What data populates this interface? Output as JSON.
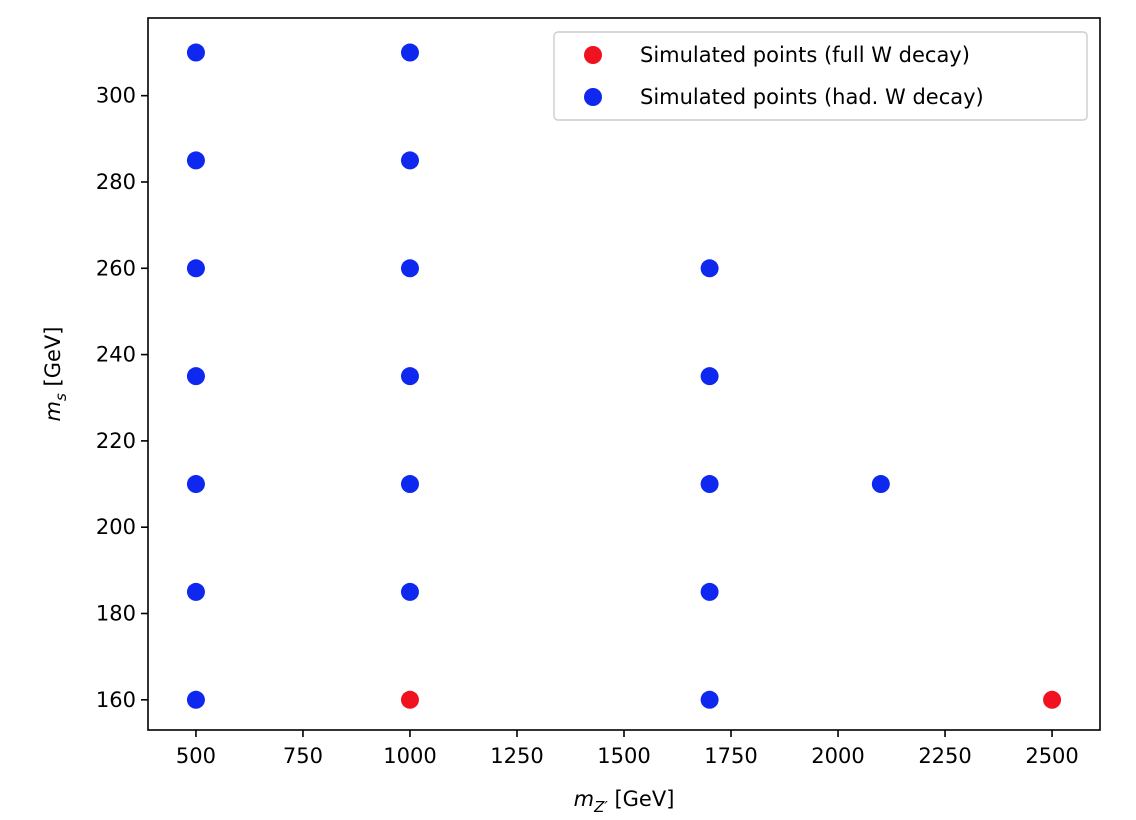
{
  "chart_data": {
    "type": "scatter",
    "xlabel": {
      "var": "m",
      "sub": "Z′",
      "unit": "[GeV]"
    },
    "ylabel": {
      "var": "m",
      "sub": "s",
      "unit": "[GeV]"
    },
    "xlim": [
      388,
      2612
    ],
    "ylim": [
      153,
      318
    ],
    "xticks": [
      500,
      750,
      1000,
      1250,
      1500,
      1750,
      2000,
      2250,
      2500
    ],
    "yticks": [
      160,
      180,
      200,
      220,
      240,
      260,
      280,
      300
    ],
    "grid": false,
    "legend_position": "top-right",
    "series": [
      {
        "name": "Simulated points (full W decay)",
        "color": "#f0121f",
        "points": [
          [
            1000,
            160
          ],
          [
            2500,
            160
          ]
        ]
      },
      {
        "name": "Simulated points (had. W decay)",
        "color": "#0f28f0",
        "points": [
          [
            500,
            160
          ],
          [
            500,
            185
          ],
          [
            500,
            210
          ],
          [
            500,
            235
          ],
          [
            500,
            260
          ],
          [
            500,
            285
          ],
          [
            500,
            310
          ],
          [
            1000,
            185
          ],
          [
            1000,
            210
          ],
          [
            1000,
            235
          ],
          [
            1000,
            260
          ],
          [
            1000,
            285
          ],
          [
            1000,
            310
          ],
          [
            1700,
            160
          ],
          [
            1700,
            185
          ],
          [
            1700,
            210
          ],
          [
            1700,
            235
          ],
          [
            1700,
            260
          ],
          [
            2100,
            210
          ]
        ]
      }
    ]
  }
}
